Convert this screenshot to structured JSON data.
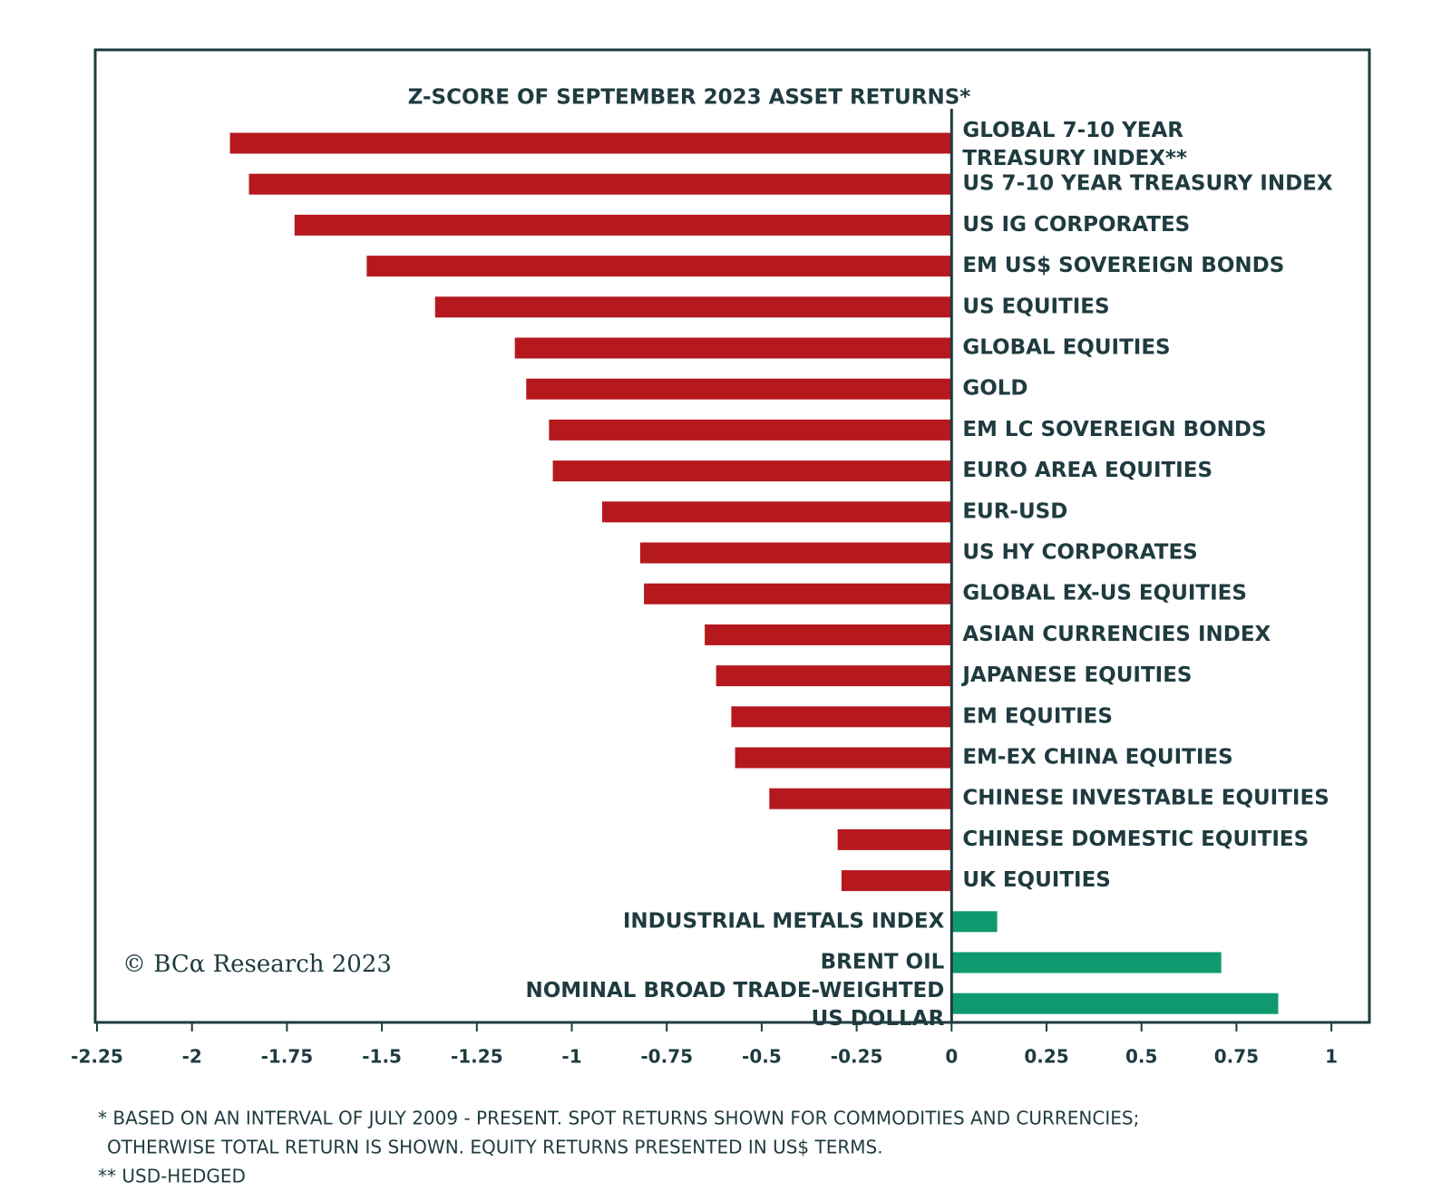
{
  "chart_data": {
    "type": "bar",
    "orientation": "horizontal",
    "title": "Z-SCORE OF SEPTEMBER 2023 ASSET RETURNS*",
    "categories": [
      "GLOBAL 7-10 YEAR TREASURY INDEX**",
      "US 7-10 YEAR TREASURY INDEX",
      "US IG CORPORATES",
      "EM US$ SOVEREIGN BONDS",
      "US EQUITIES",
      "GLOBAL EQUITIES",
      "GOLD",
      "EM LC SOVEREIGN BONDS",
      "EURO AREA EQUITIES",
      "EUR-USD",
      "US HY CORPORATES",
      "GLOBAL EX-US EQUITIES",
      "ASIAN CURRENCIES INDEX",
      "JAPANESE EQUITIES",
      "EM EQUITIES",
      "EM-EX CHINA EQUITIES",
      "CHINESE INVESTABLE EQUITIES",
      "CHINESE DOMESTIC EQUITIES",
      "UK EQUITIES",
      "INDUSTRIAL METALS INDEX",
      "BRENT OIL",
      "NOMINAL BROAD TRADE-WEIGHTED US DOLLAR"
    ],
    "values": [
      -1.9,
      -1.85,
      -1.73,
      -1.54,
      -1.36,
      -1.15,
      -1.12,
      -1.06,
      -1.05,
      -0.92,
      -0.82,
      -0.81,
      -0.65,
      -0.62,
      -0.58,
      -0.57,
      -0.48,
      -0.3,
      -0.29,
      0.12,
      0.71,
      0.86
    ],
    "negative_color": "#b5191e",
    "positive_color": "#0e9a6e",
    "xlim": [
      -2.25,
      1.1
    ],
    "xticks": [
      -2.25,
      -2,
      -1.75,
      -1.5,
      -1.25,
      -1,
      -0.75,
      -0.5,
      -0.25,
      0,
      0.25,
      0.5,
      0.75,
      1
    ],
    "source": "© BCα Research 2023",
    "footnotes": [
      "* BASED ON AN INTERVAL OF JULY 2009 - PRESENT. SPOT RETURNS SHOWN FOR COMMODITIES AND CURRENCIES;",
      "OTHERWISE TOTAL RETURN IS SHOWN. EQUITY RETURNS PRESENTED IN US$ TERMS.",
      "** USD-HEDGED"
    ]
  }
}
